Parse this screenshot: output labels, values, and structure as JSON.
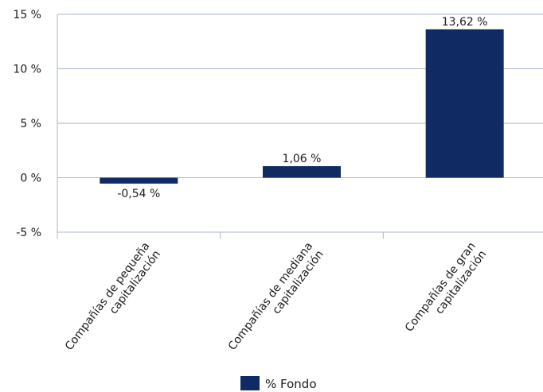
{
  "chart_data": {
    "type": "bar",
    "categories": [
      [
        "Compañías de pequeña",
        "capitalización"
      ],
      [
        "Compañías de mediana",
        "capitalización"
      ],
      [
        "Compañías de gran",
        "capitalización"
      ]
    ],
    "series": [
      {
        "name": "% Fondo",
        "values": [
          -0.54,
          1.06,
          13.62
        ],
        "labels": [
          "-0,54 %",
          "1,06 %",
          "13,62 %"
        ],
        "color": "#102a63"
      }
    ],
    "yticks": [
      -5,
      0,
      5,
      10,
      15
    ],
    "ytick_labels": [
      "-5 %",
      "0 %",
      "5 %",
      "10 %",
      "15 %"
    ],
    "ylim": [
      -5,
      15
    ],
    "grid": true,
    "legend": "bottom-center",
    "axis_color": "#a8b6cc"
  }
}
